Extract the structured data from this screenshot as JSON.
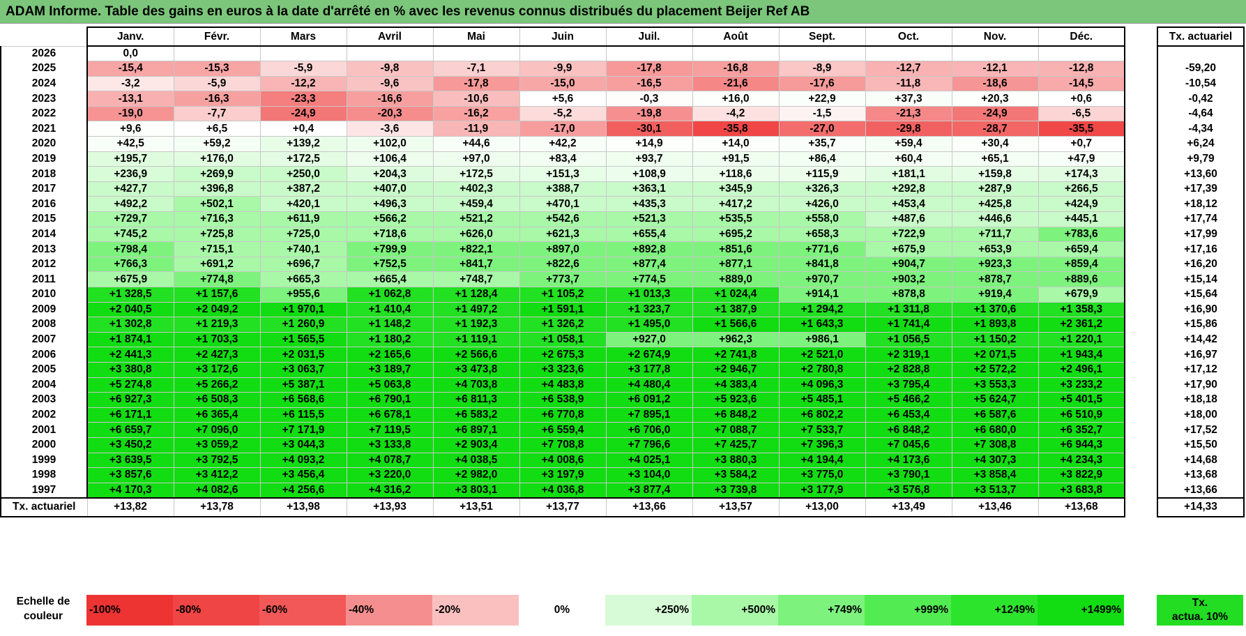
{
  "title": "ADAM Informe. Table des gains en euros à la date d'arrêté en % avec les revenus connus distribués du placement Beijer Ref AB",
  "months": [
    "Janv.",
    "Févr.",
    "Mars",
    "Avril",
    "Mai",
    "Juin",
    "Juil.",
    "Août",
    "Sept.",
    "Oct.",
    "Nov.",
    "Déc."
  ],
  "side_header": "Tx. actuariel",
  "rows": [
    {
      "year": "2026",
      "values": [
        "0,0",
        "",
        "",
        "",
        "",
        "",
        "",
        "",
        "",
        "",
        "",
        ""
      ],
      "tx": ""
    },
    {
      "year": "2025",
      "values": [
        "-15,4",
        "-15,3",
        "-5,9",
        "-9,8",
        "-7,1",
        "-9,9",
        "-17,8",
        "-16,8",
        "-8,9",
        "-12,7",
        "-12,1",
        "-12,8"
      ],
      "tx": "-59,20"
    },
    {
      "year": "2024",
      "values": [
        "-3,2",
        "-5,9",
        "-12,2",
        "-9,6",
        "-17,8",
        "-15,0",
        "-16,5",
        "-21,6",
        "-17,6",
        "-11,8",
        "-18,6",
        "-14,5"
      ],
      "tx": "-10,54"
    },
    {
      "year": "2023",
      "values": [
        "-13,1",
        "-16,3",
        "-23,3",
        "-16,6",
        "-10,6",
        "+5,6",
        "-0,3",
        "+16,0",
        "+22,9",
        "+37,3",
        "+20,3",
        "+0,6"
      ],
      "tx": "-0,42"
    },
    {
      "year": "2022",
      "values": [
        "-19,0",
        "-7,7",
        "-24,9",
        "-20,3",
        "-16,2",
        "-5,2",
        "-19,8",
        "-4,2",
        "-1,5",
        "-21,3",
        "-24,9",
        "-6,5"
      ],
      "tx": "-4,64"
    },
    {
      "year": "2021",
      "values": [
        "+9,6",
        "+6,5",
        "+0,4",
        "-3,6",
        "-11,9",
        "-17,0",
        "-30,1",
        "-35,8",
        "-27,0",
        "-29,8",
        "-28,7",
        "-35,5"
      ],
      "tx": "-4,34"
    },
    {
      "year": "2020",
      "values": [
        "+42,5",
        "+59,2",
        "+139,2",
        "+102,0",
        "+44,6",
        "+42,2",
        "+14,9",
        "+14,0",
        "+35,7",
        "+59,4",
        "+30,4",
        "+0,7"
      ],
      "tx": "+6,24"
    },
    {
      "year": "2019",
      "values": [
        "+195,7",
        "+176,0",
        "+172,5",
        "+106,4",
        "+97,0",
        "+83,4",
        "+93,7",
        "+91,5",
        "+86,4",
        "+60,4",
        "+65,1",
        "+47,9"
      ],
      "tx": "+9,79"
    },
    {
      "year": "2018",
      "values": [
        "+236,9",
        "+269,9",
        "+250,0",
        "+204,3",
        "+172,5",
        "+151,3",
        "+108,9",
        "+118,6",
        "+115,9",
        "+181,1",
        "+159,8",
        "+174,3"
      ],
      "tx": "+13,60"
    },
    {
      "year": "2017",
      "values": [
        "+427,7",
        "+396,8",
        "+387,2",
        "+407,0",
        "+402,3",
        "+388,7",
        "+363,1",
        "+345,9",
        "+326,3",
        "+292,8",
        "+287,9",
        "+266,5"
      ],
      "tx": "+17,39"
    },
    {
      "year": "2016",
      "values": [
        "+492,2",
        "+502,1",
        "+420,1",
        "+496,3",
        "+459,4",
        "+470,1",
        "+435,3",
        "+417,2",
        "+426,0",
        "+453,4",
        "+425,8",
        "+424,9"
      ],
      "tx": "+18,12"
    },
    {
      "year": "2015",
      "values": [
        "+729,7",
        "+716,3",
        "+611,9",
        "+566,2",
        "+521,2",
        "+542,6",
        "+521,3",
        "+535,5",
        "+558,0",
        "+487,6",
        "+446,6",
        "+445,1"
      ],
      "tx": "+17,74"
    },
    {
      "year": "2014",
      "values": [
        "+745,2",
        "+725,8",
        "+725,0",
        "+718,6",
        "+626,0",
        "+621,3",
        "+655,4",
        "+695,2",
        "+658,3",
        "+722,9",
        "+711,7",
        "+783,6"
      ],
      "tx": "+17,99"
    },
    {
      "year": "2013",
      "values": [
        "+798,4",
        "+715,1",
        "+740,1",
        "+799,9",
        "+822,1",
        "+897,0",
        "+892,8",
        "+851,6",
        "+771,6",
        "+675,9",
        "+653,9",
        "+659,4"
      ],
      "tx": "+17,16"
    },
    {
      "year": "2012",
      "values": [
        "+766,3",
        "+691,2",
        "+696,7",
        "+752,5",
        "+841,7",
        "+822,6",
        "+877,4",
        "+877,1",
        "+841,8",
        "+904,7",
        "+923,3",
        "+859,4"
      ],
      "tx": "+16,20"
    },
    {
      "year": "2011",
      "values": [
        "+675,9",
        "+774,8",
        "+665,3",
        "+665,4",
        "+748,7",
        "+773,7",
        "+774,5",
        "+889,0",
        "+970,7",
        "+903,2",
        "+878,7",
        "+889,6"
      ],
      "tx": "+15,14"
    },
    {
      "year": "2010",
      "values": [
        "+1 328,5",
        "+1 157,6",
        "+955,6",
        "+1 062,8",
        "+1 128,4",
        "+1 105,2",
        "+1 013,3",
        "+1 024,4",
        "+914,1",
        "+878,8",
        "+919,4",
        "+679,9"
      ],
      "tx": "+15,64"
    },
    {
      "year": "2009",
      "values": [
        "+2 040,5",
        "+2 049,2",
        "+1 970,1",
        "+1 410,4",
        "+1 497,2",
        "+1 591,1",
        "+1 323,7",
        "+1 387,9",
        "+1 294,2",
        "+1 311,8",
        "+1 370,6",
        "+1 358,3"
      ],
      "tx": "+16,90"
    },
    {
      "year": "2008",
      "values": [
        "+1 302,8",
        "+1 219,3",
        "+1 260,9",
        "+1 148,2",
        "+1 192,3",
        "+1 326,2",
        "+1 495,0",
        "+1 566,6",
        "+1 643,3",
        "+1 741,4",
        "+1 893,8",
        "+2 361,2"
      ],
      "tx": "+15,86"
    },
    {
      "year": "2007",
      "values": [
        "+1 874,1",
        "+1 703,3",
        "+1 565,5",
        "+1 180,2",
        "+1 119,1",
        "+1 058,1",
        "+927,0",
        "+962,3",
        "+986,1",
        "+1 056,5",
        "+1 150,2",
        "+1 220,1"
      ],
      "tx": "+14,42"
    },
    {
      "year": "2006",
      "values": [
        "+2 441,3",
        "+2 427,3",
        "+2 031,5",
        "+2 165,6",
        "+2 566,6",
        "+2 675,3",
        "+2 674,9",
        "+2 741,8",
        "+2 521,0",
        "+2 319,1",
        "+2 071,5",
        "+1 943,4"
      ],
      "tx": "+16,97"
    },
    {
      "year": "2005",
      "values": [
        "+3 380,8",
        "+3 172,6",
        "+3 063,7",
        "+3 189,7",
        "+3 473,8",
        "+3 323,6",
        "+3 177,8",
        "+2 946,7",
        "+2 780,8",
        "+2 828,8",
        "+2 572,2",
        "+2 496,1"
      ],
      "tx": "+17,12"
    },
    {
      "year": "2004",
      "values": [
        "+5 274,8",
        "+5 266,2",
        "+5 387,1",
        "+5 063,8",
        "+4 703,8",
        "+4 483,8",
        "+4 480,4",
        "+4 383,4",
        "+4 096,3",
        "+3 795,4",
        "+3 553,3",
        "+3 233,2"
      ],
      "tx": "+17,90"
    },
    {
      "year": "2003",
      "values": [
        "+6 927,3",
        "+6 508,3",
        "+6 568,6",
        "+6 790,1",
        "+6 811,3",
        "+6 538,9",
        "+6 091,2",
        "+5 923,6",
        "+5 485,1",
        "+5 466,2",
        "+5 624,7",
        "+5 401,5"
      ],
      "tx": "+18,18"
    },
    {
      "year": "2002",
      "values": [
        "+6 171,1",
        "+6 365,4",
        "+6 115,5",
        "+6 678,1",
        "+6 583,2",
        "+6 770,8",
        "+7 895,1",
        "+6 848,2",
        "+6 802,2",
        "+6 453,4",
        "+6 587,6",
        "+6 510,9"
      ],
      "tx": "+18,00"
    },
    {
      "year": "2001",
      "values": [
        "+6 659,7",
        "+7 096,0",
        "+7 171,9",
        "+7 119,5",
        "+6 897,1",
        "+6 559,4",
        "+6 706,0",
        "+7 088,7",
        "+7 533,7",
        "+6 848,2",
        "+6 680,0",
        "+6 352,7"
      ],
      "tx": "+17,52"
    },
    {
      "year": "2000",
      "values": [
        "+3 450,2",
        "+3 059,2",
        "+3 044,3",
        "+3 133,8",
        "+2 903,4",
        "+7 708,8",
        "+7 796,6",
        "+7 425,7",
        "+7 396,3",
        "+7 045,6",
        "+7 308,8",
        "+6 944,3"
      ],
      "tx": "+15,50"
    },
    {
      "year": "1999",
      "values": [
        "+3 639,5",
        "+3 792,5",
        "+4 093,2",
        "+4 078,7",
        "+4 038,5",
        "+4 008,6",
        "+4 025,1",
        "+3 880,3",
        "+4 194,4",
        "+4 173,6",
        "+4 307,3",
        "+4 234,3"
      ],
      "tx": "+14,68"
    },
    {
      "year": "1998",
      "values": [
        "+3 857,6",
        "+3 412,2",
        "+3 456,4",
        "+3 220,0",
        "+2 982,0",
        "+3 197,9",
        "+3 104,0",
        "+3 584,2",
        "+3 775,0",
        "+3 790,1",
        "+3 858,4",
        "+3 822,9"
      ],
      "tx": "+13,68"
    },
    {
      "year": "1997",
      "values": [
        "+4 170,3",
        "+4 082,6",
        "+4 256,6",
        "+4 316,2",
        "+3 803,1",
        "+4 036,8",
        "+3 877,4",
        "+3 739,8",
        "+3 177,9",
        "+3 576,8",
        "+3 513,7",
        "+3 683,8"
      ],
      "tx": "+13,66"
    }
  ],
  "footer": {
    "label": "Tx. actuariel",
    "values": [
      "+13,82",
      "+13,78",
      "+13,98",
      "+13,93",
      "+13,51",
      "+13,77",
      "+13,66",
      "+13,57",
      "+13,00",
      "+13,49",
      "+13,46",
      "+13,68"
    ],
    "total": "+14,33"
  },
  "scale": {
    "label": "Echelle de couleur",
    "cells": [
      {
        "text": "-100%",
        "color": "#ee3333",
        "align": "left"
      },
      {
        "text": "-80%",
        "color": "#f04545",
        "align": "left"
      },
      {
        "text": "-60%",
        "color": "#f25858",
        "align": "left"
      },
      {
        "text": "-40%",
        "color": "#f58f8f",
        "align": "left"
      },
      {
        "text": "-20%",
        "color": "#fac0c0",
        "align": "left"
      },
      {
        "text": "0%",
        "color": "#ffffff",
        "align": "center"
      },
      {
        "text": "+250%",
        "color": "#d6fbd6",
        "align": "right"
      },
      {
        "text": "+500%",
        "color": "#a8f8a8",
        "align": "right"
      },
      {
        "text": "+749%",
        "color": "#7df27d",
        "align": "right"
      },
      {
        "text": "+999%",
        "color": "#52ec52",
        "align": "right"
      },
      {
        "text": "+1249%",
        "color": "#2ce42c",
        "align": "right"
      },
      {
        "text": "+1499%",
        "color": "#12dd12",
        "align": "right"
      }
    ],
    "actua_line1": "Tx.",
    "actua_line2": "actua. 10%"
  },
  "colors": {
    "title_bg": "#7bc67b",
    "tx_bg": "#22dd22"
  }
}
